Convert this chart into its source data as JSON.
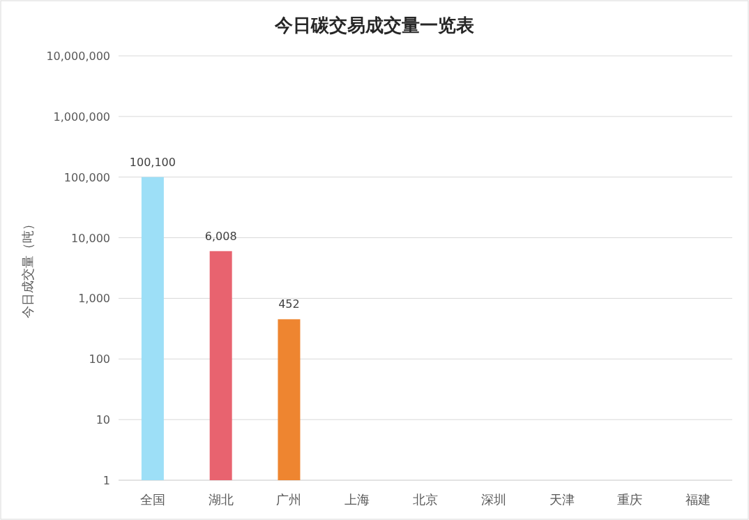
{
  "chart_data": {
    "type": "bar",
    "title": "今日碳交易成交量一览表",
    "ylabel": "今日成交量（吨）",
    "categories": [
      "全国",
      "湖北",
      "广州",
      "上海",
      "北京",
      "深圳",
      "天津",
      "重庆",
      "福建"
    ],
    "values": [
      100100,
      6008,
      452,
      null,
      null,
      null,
      null,
      null,
      null
    ],
    "colors": [
      "#9ddff7",
      "#e8636f",
      "#ee8530",
      null,
      null,
      null,
      null,
      null,
      null
    ],
    "value_labels": [
      "100,100",
      "6,008",
      "452",
      null,
      null,
      null,
      null,
      null,
      null
    ],
    "log": "y",
    "ylim": [
      1,
      10000000
    ],
    "yticks": [
      1,
      10,
      100,
      {
        "value": 1000,
        "label": "1,000"
      },
      {
        "value": 10000,
        "label": "10,000"
      },
      {
        "value": 100000,
        "label": "100,000"
      },
      {
        "value": 1000000,
        "label": "1,000,000"
      },
      {
        "value": 10000000,
        "label": "10,000,000"
      }
    ],
    "grid": "y"
  }
}
